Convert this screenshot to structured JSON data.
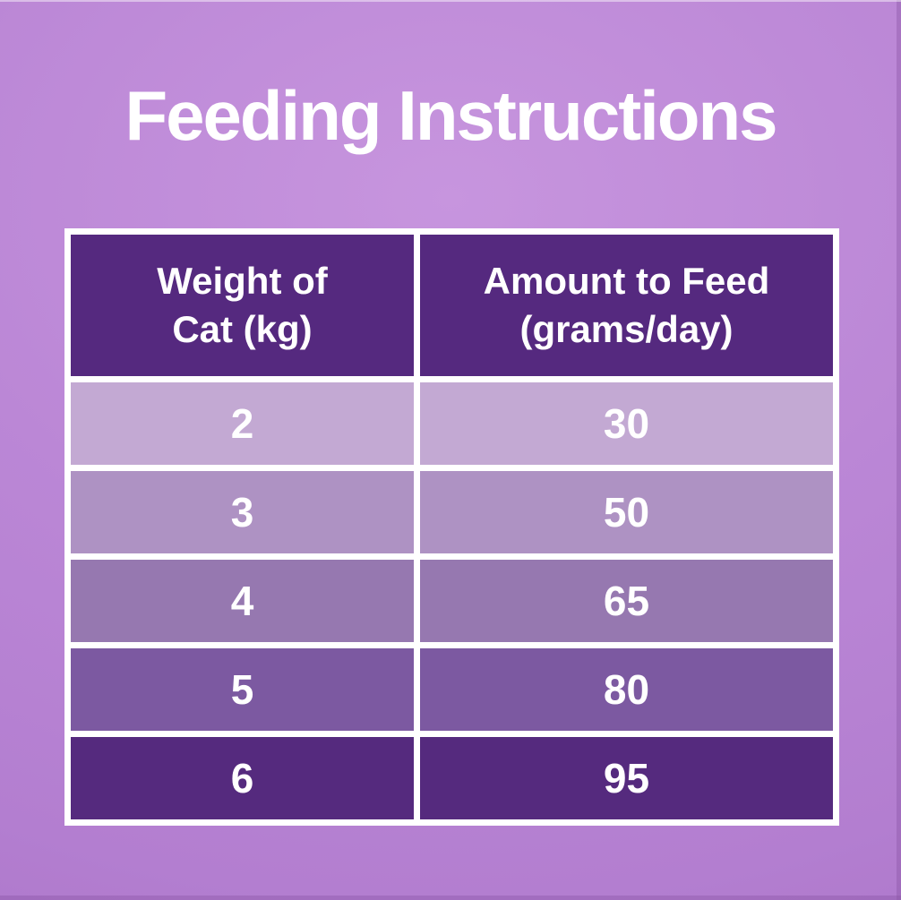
{
  "title": "Feeding Instructions",
  "colors": {
    "background": "#bb87d6",
    "table_border": "#ffffff",
    "header_bg": "#55297f",
    "text": "#ffffff",
    "row_bgs": [
      "#c3a9d3",
      "#ae92c3",
      "#9678b0",
      "#7c59a1",
      "#552a7e"
    ]
  },
  "table": {
    "columns": [
      {
        "label": "Weight of\nCat (kg)"
      },
      {
        "label": "Amount to Feed\n(grams/day)"
      }
    ],
    "rows": [
      {
        "weight": "2",
        "amount": "30",
        "bg": "#c3a9d3"
      },
      {
        "weight": "3",
        "amount": "50",
        "bg": "#ae92c3"
      },
      {
        "weight": "4",
        "amount": "65",
        "bg": "#9678b0"
      },
      {
        "weight": "5",
        "amount": "80",
        "bg": "#7c59a1"
      },
      {
        "weight": "6",
        "amount": "95",
        "bg": "#552a7e"
      }
    ]
  },
  "chart_data": {
    "type": "table",
    "title": "Feeding Instructions",
    "columns": [
      "Weight of Cat (kg)",
      "Amount to Feed (grams/day)"
    ],
    "rows": [
      [
        2,
        30
      ],
      [
        3,
        50
      ],
      [
        4,
        65
      ],
      [
        5,
        80
      ],
      [
        6,
        95
      ]
    ]
  }
}
